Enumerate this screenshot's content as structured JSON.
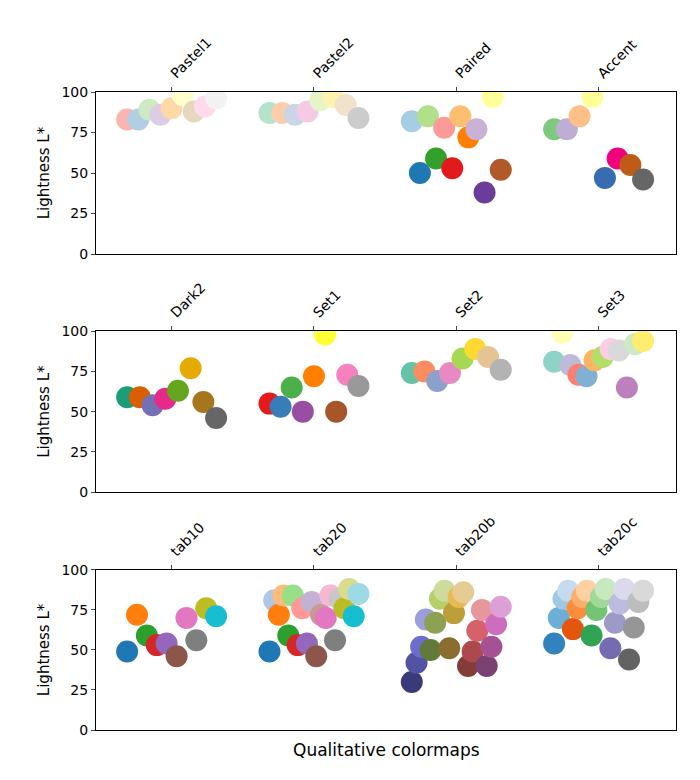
{
  "chart_data": [
    {
      "type": "scatter",
      "y_label": "Lightness L*",
      "xlim": [
        -0.35,
        6.17
      ],
      "ylim": [
        0,
        100
      ],
      "yticks": [
        0,
        25,
        50,
        75,
        100
      ],
      "xticks": [
        {
          "value": 0.5,
          "label": "Pastel1"
        },
        {
          "value": 2.1,
          "label": "Pastel2"
        },
        {
          "value": 3.7,
          "label": "Paired"
        },
        {
          "value": 5.3,
          "label": "Accent"
        }
      ],
      "series": [
        {
          "x": [
            0,
            0.125,
            0.25,
            0.375,
            0.5,
            0.625,
            0.75,
            0.875,
            1
          ],
          "values": [
            83,
            83,
            89,
            86,
            90,
            98,
            88,
            91,
            96
          ],
          "colors": [
            "#fbb4ae",
            "#b3cde3",
            "#ccebc5",
            "#decbe4",
            "#fed9a6",
            "#ffffcc",
            "#e5d8bd",
            "#fddaec",
            "#f2f2f2"
          ]
        },
        {
          "x": [
            1.6,
            1.743,
            1.886,
            2.029,
            2.171,
            2.314,
            2.457,
            2.6
          ],
          "values": [
            87,
            87,
            86,
            88,
            95,
            97,
            92,
            84
          ],
          "colors": [
            "#b3e2cd",
            "#fdcdac",
            "#cbd5e8",
            "#f4cae4",
            "#e6f5c9",
            "#fff2ae",
            "#f1e2cc",
            "#cccccc"
          ]
        },
        {
          "x": [
            3.2,
            3.291,
            3.382,
            3.473,
            3.564,
            3.655,
            3.745,
            3.836,
            3.927,
            4.018,
            4.109,
            4.2
          ],
          "values": [
            82,
            50,
            85,
            59,
            78,
            53,
            85,
            72,
            77,
            38,
            97,
            52
          ],
          "colors": [
            "#a6cee3",
            "#1f78b4",
            "#b2df8a",
            "#33a02c",
            "#fb9a99",
            "#e31a1c",
            "#fdbf6f",
            "#ff7f00",
            "#cab2d6",
            "#6a3d9a",
            "#ffff99",
            "#b15928"
          ]
        },
        {
          "x": [
            4.8,
            4.943,
            5.086,
            5.229,
            5.371,
            5.514,
            5.657,
            5.8
          ],
          "values": [
            77,
            77,
            85,
            97,
            47,
            59,
            55,
            46
          ],
          "colors": [
            "#7fc97f",
            "#beaed4",
            "#fdc086",
            "#ffff99",
            "#386cb0",
            "#f0027f",
            "#bf5b17",
            "#666666"
          ]
        }
      ]
    },
    {
      "type": "scatter",
      "y_label": "Lightness L*",
      "xlim": [
        -0.35,
        6.17
      ],
      "ylim": [
        0,
        100
      ],
      "yticks": [
        0,
        25,
        50,
        75,
        100
      ],
      "xticks": [
        {
          "value": 0.5,
          "label": "Dark2"
        },
        {
          "value": 2.1,
          "label": "Set1"
        },
        {
          "value": 3.7,
          "label": "Set2"
        },
        {
          "value": 5.3,
          "label": "Set3"
        }
      ],
      "series": [
        {
          "x": [
            0,
            0.143,
            0.286,
            0.429,
            0.571,
            0.714,
            0.857,
            1
          ],
          "values": [
            59,
            59,
            54,
            58,
            63,
            77,
            56,
            46
          ],
          "colors": [
            "#1b9e77",
            "#d95f02",
            "#7570b3",
            "#e7298a",
            "#66a61e",
            "#e6ab02",
            "#a6761d",
            "#666666"
          ]
        },
        {
          "x": [
            1.6,
            1.725,
            1.85,
            1.975,
            2.1,
            2.225,
            2.35,
            2.475,
            2.6
          ],
          "values": [
            55,
            53,
            65,
            50,
            72,
            98,
            50,
            73,
            66
          ],
          "colors": [
            "#e41a1c",
            "#377eb8",
            "#4daf4a",
            "#984ea3",
            "#ff7f00",
            "#ffff33",
            "#a65628",
            "#f781bf",
            "#999999"
          ]
        },
        {
          "x": [
            3.2,
            3.343,
            3.486,
            3.629,
            3.771,
            3.914,
            4.057,
            4.2
          ],
          "values": [
            74,
            75,
            69,
            74,
            83,
            89,
            84,
            76
          ],
          "colors": [
            "#66c2a5",
            "#fc8d62",
            "#8da0cb",
            "#e78ac3",
            "#a6d854",
            "#ffd92f",
            "#e5c494",
            "#b3b3b3"
          ]
        },
        {
          "x": [
            4.8,
            4.891,
            4.982,
            5.073,
            5.164,
            5.255,
            5.345,
            5.436,
            5.527,
            5.618,
            5.709,
            5.8
          ],
          "values": [
            81,
            99,
            79,
            73,
            72,
            82,
            84,
            89,
            88,
            65,
            92,
            94
          ],
          "colors": [
            "#8dd3c7",
            "#ffffb3",
            "#bebada",
            "#fb8072",
            "#80b1d3",
            "#fdb462",
            "#b3de69",
            "#fccde5",
            "#d9d9d9",
            "#bc80bd",
            "#ccebc5",
            "#ffed6f"
          ]
        }
      ]
    },
    {
      "type": "scatter",
      "y_label": "Lightness L*",
      "x_label": "Qualitative colormaps",
      "xlim": [
        -0.35,
        6.17
      ],
      "ylim": [
        0,
        100
      ],
      "yticks": [
        0,
        25,
        50,
        75,
        100
      ],
      "xticks": [
        {
          "value": 0.5,
          "label": "tab10"
        },
        {
          "value": 2.1,
          "label": "tab20"
        },
        {
          "value": 3.7,
          "label": "tab20b"
        },
        {
          "value": 5.3,
          "label": "tab20c"
        }
      ],
      "series": [
        {
          "x": [
            0,
            0.111,
            0.222,
            0.333,
            0.444,
            0.556,
            0.667,
            0.778,
            0.889,
            1
          ],
          "values": [
            49,
            72,
            59,
            53,
            54,
            46,
            70,
            56,
            76,
            71
          ],
          "colors": [
            "#1f77b4",
            "#ff7f0e",
            "#2ca02c",
            "#d62728",
            "#9467bd",
            "#8c564b",
            "#e377c2",
            "#7f7f7f",
            "#bcbd22",
            "#17becf"
          ]
        },
        {
          "x": [
            1.6,
            1.653,
            1.705,
            1.758,
            1.811,
            1.863,
            1.916,
            1.968,
            2.021,
            2.074,
            2.126,
            2.179,
            2.232,
            2.284,
            2.337,
            2.389,
            2.442,
            2.495,
            2.547,
            2.6
          ],
          "values": [
            49,
            81,
            72,
            84,
            59,
            84,
            53,
            76,
            54,
            80,
            46,
            72,
            70,
            84,
            56,
            82,
            76,
            88,
            71,
            85
          ],
          "colors": [
            "#1f77b4",
            "#aec7e8",
            "#ff7f0e",
            "#ffbb78",
            "#2ca02c",
            "#98df8a",
            "#d62728",
            "#ff9896",
            "#9467bd",
            "#c5b0d5",
            "#8c564b",
            "#c49c94",
            "#e377c2",
            "#f7b6d2",
            "#7f7f7f",
            "#c7c7c7",
            "#bcbd22",
            "#dbdb8d",
            "#17becf",
            "#9edae5"
          ]
        },
        {
          "x": [
            3.2,
            3.253,
            3.305,
            3.358,
            3.411,
            3.463,
            3.516,
            3.568,
            3.621,
            3.674,
            3.726,
            3.779,
            3.832,
            3.884,
            3.937,
            3.989,
            4.042,
            4.095,
            4.147,
            4.2
          ],
          "values": [
            30,
            42,
            52,
            69,
            50,
            67,
            82,
            87,
            51,
            73,
            83,
            86,
            40,
            49,
            62,
            75,
            40,
            52,
            66,
            77
          ],
          "colors": [
            "#393b79",
            "#5254a3",
            "#6b6ecf",
            "#9c9ede",
            "#637939",
            "#8ca252",
            "#b5cf6b",
            "#cedb9c",
            "#8c6d31",
            "#bd9e39",
            "#e7ba52",
            "#e7cb94",
            "#843c39",
            "#ad494a",
            "#d6616b",
            "#e7969c",
            "#7b4173",
            "#a55194",
            "#ce6dbd",
            "#de9ed6"
          ]
        },
        {
          "x": [
            4.8,
            4.853,
            4.905,
            4.958,
            5.011,
            5.063,
            5.116,
            5.168,
            5.221,
            5.274,
            5.326,
            5.379,
            5.432,
            5.484,
            5.537,
            5.589,
            5.642,
            5.695,
            5.747,
            5.8
          ],
          "values": [
            54,
            70,
            82,
            87,
            63,
            76,
            83,
            87,
            59,
            75,
            83,
            88,
            51,
            67,
            79,
            88,
            44,
            64,
            80,
            87
          ],
          "colors": [
            "#3182bd",
            "#6baed6",
            "#9ecae1",
            "#c6dbef",
            "#e6550d",
            "#fd8d3c",
            "#fdae6b",
            "#fdd0a2",
            "#31a354",
            "#74c476",
            "#a1d99b",
            "#c7e9c0",
            "#756bb1",
            "#9e9ac8",
            "#bcbddc",
            "#dadaeb",
            "#636363",
            "#969696",
            "#bdbdbd",
            "#d9d9d9"
          ]
        }
      ]
    }
  ]
}
